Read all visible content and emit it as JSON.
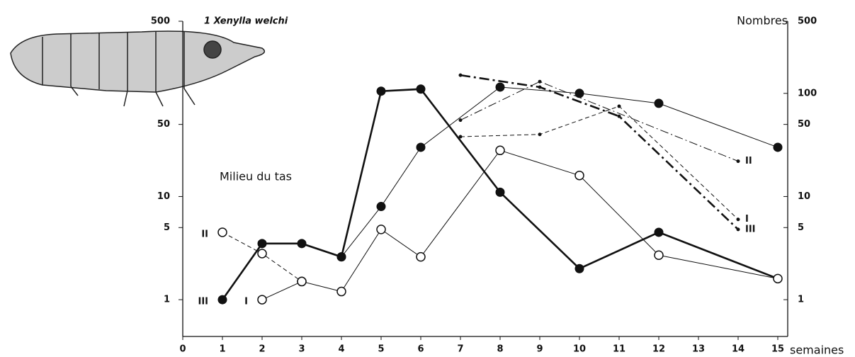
{
  "chart_data": {
    "type": "line",
    "title": "1 Xenylla welchi",
    "annotation": "Milieu du tas",
    "y_label": "Nombres",
    "x_label": "semaines",
    "log_y": true,
    "color": "#111111",
    "xlim": [
      0,
      15
    ],
    "xticks": [
      0,
      1,
      2,
      3,
      4,
      5,
      6,
      7,
      8,
      9,
      10,
      11,
      12,
      13,
      14,
      15
    ],
    "ylim": [
      0.44,
      500
    ],
    "yticks": [
      1,
      5,
      10,
      50,
      500
    ],
    "y2lim": [
      0.44,
      500
    ],
    "y2ticks": [
      1,
      5,
      10,
      50,
      100,
      500
    ],
    "series": [
      {
        "style": "bold",
        "marker": "filled",
        "start_label": "III",
        "x": [
          1,
          2,
          3,
          4,
          5,
          6,
          8,
          10,
          12,
          15
        ],
        "values": [
          1,
          3.5,
          3.5,
          2.6,
          105,
          110,
          11,
          2,
          4.5,
          1.6
        ]
      },
      {
        "style": "thin",
        "marker": "filled",
        "x": [
          4,
          5,
          6,
          8,
          10,
          12,
          15
        ],
        "values": [
          2.6,
          8,
          30,
          115,
          100,
          80,
          30
        ]
      },
      {
        "style": "dashed",
        "marker": "open",
        "start_label": "II",
        "x": [
          1,
          2,
          3
        ],
        "values": [
          4.5,
          2.8,
          1.5
        ]
      },
      {
        "style": "thin",
        "marker": "open",
        "start_label": "I",
        "x": [
          2,
          3,
          4,
          5,
          6,
          8,
          10,
          12,
          15
        ],
        "values": [
          1,
          1.5,
          1.2,
          4.8,
          2.6,
          28,
          16,
          2.7,
          1.6
        ]
      },
      {
        "style": "bold-dashdot",
        "marker": "dot",
        "end_label": "III",
        "x": [
          7,
          9,
          11,
          14
        ],
        "values": [
          150,
          115,
          60,
          4.8
        ]
      },
      {
        "style": "dashdot",
        "marker": "dot",
        "end_label": "II",
        "x": [
          7,
          9,
          14
        ],
        "values": [
          55,
          130,
          22
        ]
      },
      {
        "style": "dashed",
        "marker": "dot",
        "end_label": "I",
        "x": [
          7,
          9,
          11,
          14
        ],
        "values": [
          38,
          40,
          75,
          6
        ]
      }
    ]
  }
}
